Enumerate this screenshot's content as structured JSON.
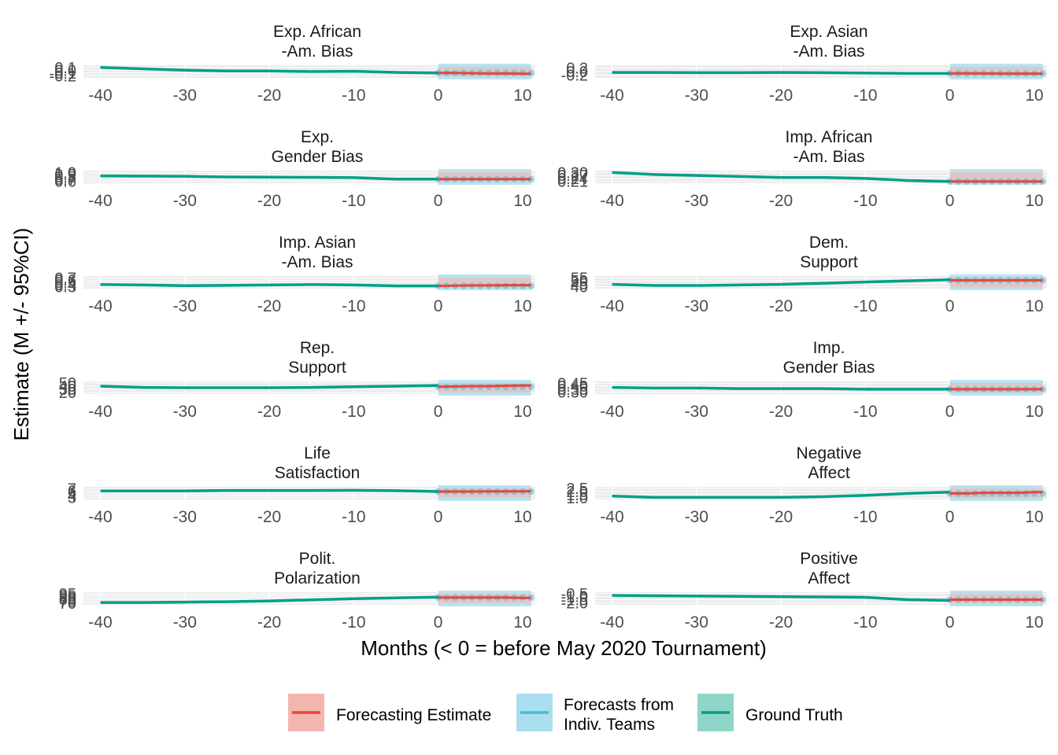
{
  "chart_data": {
    "type": "line",
    "xlabel": "Months (< 0 = before May 2020 Tournament)",
    "ylabel": "Estimate (M +/- 95%CI)",
    "xlim": [
      -42,
      11.5
    ],
    "xticks": [
      -40,
      -30,
      -20,
      -10,
      0,
      10
    ],
    "grid": true,
    "legend_position": "bottom",
    "legend": [
      {
        "name": "Forecasting Estimate",
        "color": "#e8463a",
        "fill": "#f4b5ae"
      },
      {
        "name": "Forecasts from\nIndiv. Teams",
        "color": "#4ab8dc",
        "fill": "#a9dfee"
      },
      {
        "name": "Ground Truth",
        "color": "#00a087",
        "fill": "#8fd6c8"
      }
    ],
    "panels": [
      {
        "title": "Exp. African\n-Am. Bias",
        "yticks": [
          "0.1",
          "0.0",
          "-0.1",
          "-0.2"
        ],
        "ylim": [
          -0.25,
          0.15
        ],
        "ground_truth": {
          "x": [
            -40,
            -35,
            -30,
            -25,
            -20,
            -15,
            -10,
            -5,
            0
          ],
          "y": [
            0.1,
            0.05,
            0.0,
            -0.03,
            -0.03,
            -0.05,
            -0.04,
            -0.08,
            -0.1
          ]
        },
        "forecast": {
          "x": [
            0,
            2,
            4,
            6,
            8,
            10,
            11
          ],
          "y": [
            -0.1,
            -0.1,
            -0.11,
            -0.12,
            -0.12,
            -0.13,
            -0.13
          ]
        },
        "teams_x": [
          0,
          1,
          2,
          3,
          4,
          5,
          6,
          7,
          8,
          9,
          10,
          11
        ]
      },
      {
        "title": "Exp. Asian\n-Am. Bias",
        "yticks": [
          "0.2",
          "0.0",
          "-0.2"
        ],
        "ylim": [
          -0.3,
          0.3
        ],
        "ground_truth": {
          "x": [
            -40,
            -35,
            -30,
            -25,
            -20,
            -15,
            -10,
            -5,
            0
          ],
          "y": [
            -0.05,
            -0.05,
            -0.06,
            -0.06,
            -0.05,
            -0.06,
            -0.08,
            -0.1,
            -0.1
          ]
        },
        "forecast": {
          "x": [
            0,
            2,
            4,
            6,
            8,
            10,
            11
          ],
          "y": [
            -0.1,
            -0.1,
            -0.1,
            -0.11,
            -0.11,
            -0.11,
            -0.12
          ]
        },
        "teams_x": [
          0,
          1,
          2,
          3,
          4,
          5,
          6,
          7,
          8,
          9,
          10,
          11
        ]
      },
      {
        "title": "Exp.\nGender Bias",
        "yticks": [
          "1.0",
          "0.9",
          "0.8",
          "0.7",
          "0.6"
        ],
        "ylim": [
          0.55,
          1.05
        ],
        "ground_truth": {
          "x": [
            -40,
            -35,
            -30,
            -25,
            -20,
            -15,
            -10,
            -5,
            0
          ],
          "y": [
            0.85,
            0.84,
            0.83,
            0.8,
            0.79,
            0.78,
            0.77,
            0.7,
            0.7
          ]
        },
        "forecast": {
          "x": [
            0,
            2,
            4,
            6,
            8,
            10,
            11
          ],
          "y": [
            0.7,
            0.7,
            0.7,
            0.7,
            0.7,
            0.7,
            0.7
          ]
        },
        "teams_x": [
          0,
          1,
          2,
          3,
          4,
          5,
          6,
          7,
          8,
          9,
          10,
          11
        ]
      },
      {
        "title": "Imp. African\n-Am. Bias",
        "yticks": [
          "0.30",
          "0.27",
          "0.24",
          "0.21"
        ],
        "ylim": [
          0.2,
          0.31
        ],
        "ground_truth": {
          "x": [
            -40,
            -35,
            -30,
            -25,
            -20,
            -15,
            -10,
            -5,
            0
          ],
          "y": [
            0.3,
            0.28,
            0.27,
            0.26,
            0.25,
            0.25,
            0.24,
            0.22,
            0.21
          ]
        },
        "forecast": {
          "x": [
            0,
            2,
            4,
            6,
            8,
            10,
            11
          ],
          "y": [
            0.21,
            0.21,
            0.21,
            0.21,
            0.21,
            0.21,
            0.21
          ]
        },
        "teams_x": [
          0,
          1,
          2,
          3,
          4,
          5,
          6,
          7,
          8,
          9,
          10,
          11
        ]
      },
      {
        "title": "Imp. Asian\n-Am. Bias",
        "yticks": [
          "0.7",
          "0.6",
          "0.5",
          "0.4",
          "0.3"
        ],
        "ylim": [
          0.25,
          0.75
        ],
        "ground_truth": {
          "x": [
            -40,
            -35,
            -30,
            -25,
            -20,
            -15,
            -10,
            -5,
            0
          ],
          "y": [
            0.4,
            0.38,
            0.35,
            0.36,
            0.38,
            0.4,
            0.38,
            0.34,
            0.34
          ]
        },
        "forecast": {
          "x": [
            0,
            2,
            4,
            6,
            8,
            10,
            11
          ],
          "y": [
            0.34,
            0.35,
            0.36,
            0.36,
            0.37,
            0.37,
            0.37
          ]
        },
        "teams_x": [
          0,
          1,
          2,
          3,
          4,
          5,
          6,
          7,
          8,
          9,
          10,
          11
        ]
      },
      {
        "title": "Dem.\nSupport",
        "yticks": [
          "55",
          "50",
          "45",
          "40"
        ],
        "ylim": [
          38,
          57
        ],
        "ground_truth": {
          "x": [
            -40,
            -35,
            -30,
            -25,
            -20,
            -15,
            -10,
            -5,
            0
          ],
          "y": [
            44,
            42,
            42,
            43,
            44,
            46,
            48,
            50,
            52
          ]
        },
        "forecast": {
          "x": [
            0,
            2,
            4,
            6,
            8,
            10,
            11
          ],
          "y": [
            51,
            51,
            51,
            51,
            51,
            51,
            51
          ]
        },
        "teams_x": [
          0,
          1,
          2,
          3,
          4,
          5,
          6,
          7,
          8,
          9,
          10,
          11
        ]
      },
      {
        "title": "Rep.\nSupport",
        "yticks": [
          "50",
          "40",
          "30",
          "20"
        ],
        "ylim": [
          18,
          52
        ],
        "ground_truth": {
          "x": [
            -40,
            -35,
            -30,
            -25,
            -20,
            -15,
            -10,
            -5,
            0
          ],
          "y": [
            40,
            36,
            35,
            35,
            35,
            36,
            38,
            40,
            42
          ]
        },
        "forecast": {
          "x": [
            0,
            2,
            4,
            6,
            8,
            10,
            11
          ],
          "y": [
            38,
            39,
            40,
            40,
            41,
            42,
            42
          ]
        },
        "teams_x": [
          0,
          1,
          2,
          3,
          4,
          5,
          6,
          7,
          8,
          9,
          10,
          11
        ]
      },
      {
        "title": "Imp.\nGender Bias",
        "yticks": [
          "0.45",
          "0.40",
          "0.35",
          "0.30"
        ],
        "ylim": [
          0.28,
          0.47
        ],
        "ground_truth": {
          "x": [
            -40,
            -35,
            -30,
            -25,
            -20,
            -15,
            -10,
            -5,
            0
          ],
          "y": [
            0.38,
            0.37,
            0.37,
            0.36,
            0.36,
            0.36,
            0.35,
            0.35,
            0.35
          ]
        },
        "forecast": {
          "x": [
            0,
            2,
            4,
            6,
            8,
            10,
            11
          ],
          "y": [
            0.35,
            0.35,
            0.35,
            0.35,
            0.35,
            0.35,
            0.35
          ]
        },
        "teams_x": [
          0,
          1,
          2,
          3,
          4,
          5,
          6,
          7,
          8,
          9,
          10,
          11
        ]
      },
      {
        "title": "Life\nSatisfaction",
        "yticks": [
          "7",
          "6",
          "5",
          "4",
          "3"
        ],
        "ylim": [
          2.5,
          7.5
        ],
        "ground_truth": {
          "x": [
            -40,
            -35,
            -30,
            -25,
            -20,
            -15,
            -10,
            -5,
            0
          ],
          "y": [
            6,
            6,
            6,
            6.2,
            6.2,
            6.2,
            6.3,
            6.1,
            5.7
          ]
        },
        "forecast": {
          "x": [
            0,
            2,
            4,
            6,
            8,
            10,
            11
          ],
          "y": [
            5.7,
            5.7,
            5.7,
            5.8,
            5.8,
            5.8,
            5.9
          ]
        },
        "teams_x": [
          0,
          1,
          2,
          3,
          4,
          5,
          6,
          7,
          8,
          9,
          10,
          11
        ]
      },
      {
        "title": "Negative\nAffect",
        "yticks": [
          "2.5",
          "2.0",
          "1.5",
          "1.0"
        ],
        "ylim": [
          0.9,
          2.6
        ],
        "ground_truth": {
          "x": [
            -40,
            -35,
            -30,
            -25,
            -20,
            -15,
            -10,
            -5,
            0
          ],
          "y": [
            1.3,
            1.1,
            1.1,
            1.1,
            1.1,
            1.2,
            1.4,
            1.7,
            1.9
          ]
        },
        "forecast": {
          "x": [
            0,
            2,
            4,
            6,
            8,
            10,
            11
          ],
          "y": [
            1.7,
            1.7,
            1.8,
            1.8,
            1.8,
            1.9,
            1.9
          ]
        },
        "teams_x": [
          0,
          1,
          2,
          3,
          4,
          5,
          6,
          7,
          8,
          9,
          10,
          11
        ]
      },
      {
        "title": "Polit.\nPolarization",
        "yticks": [
          "95",
          "90",
          "85",
          "80",
          "75",
          "70"
        ],
        "ylim": [
          68,
          97
        ],
        "ground_truth": {
          "x": [
            -40,
            -35,
            -30,
            -25,
            -20,
            -15,
            -10,
            -5,
            0
          ],
          "y": [
            72,
            72,
            73,
            74,
            76,
            79,
            82,
            84,
            86
          ]
        },
        "forecast": {
          "x": [
            0,
            2,
            4,
            6,
            8,
            10,
            11
          ],
          "y": [
            85,
            85,
            85,
            85,
            85,
            84,
            84
          ]
        },
        "teams_x": [
          0,
          1,
          2,
          3,
          4,
          5,
          6,
          7,
          8,
          9,
          10,
          11
        ]
      },
      {
        "title": "Positive\nAffect",
        "yticks": [
          "-0.5",
          "-1.0",
          "-1.5",
          "-2.0"
        ],
        "ylim": [
          -2.2,
          -0.4
        ],
        "ground_truth": {
          "x": [
            -40,
            -35,
            -30,
            -25,
            -20,
            -15,
            -10,
            -5,
            0
          ],
          "y": [
            -0.8,
            -0.85,
            -0.9,
            -0.95,
            -1.0,
            -1.05,
            -1.1,
            -1.5,
            -1.6
          ]
        },
        "forecast": {
          "x": [
            0,
            2,
            4,
            6,
            8,
            10,
            11
          ],
          "y": [
            -1.5,
            -1.5,
            -1.5,
            -1.5,
            -1.5,
            -1.5,
            -1.5
          ]
        },
        "teams_x": [
          0,
          1,
          2,
          3,
          4,
          5,
          6,
          7,
          8,
          9,
          10,
          11
        ]
      }
    ]
  }
}
